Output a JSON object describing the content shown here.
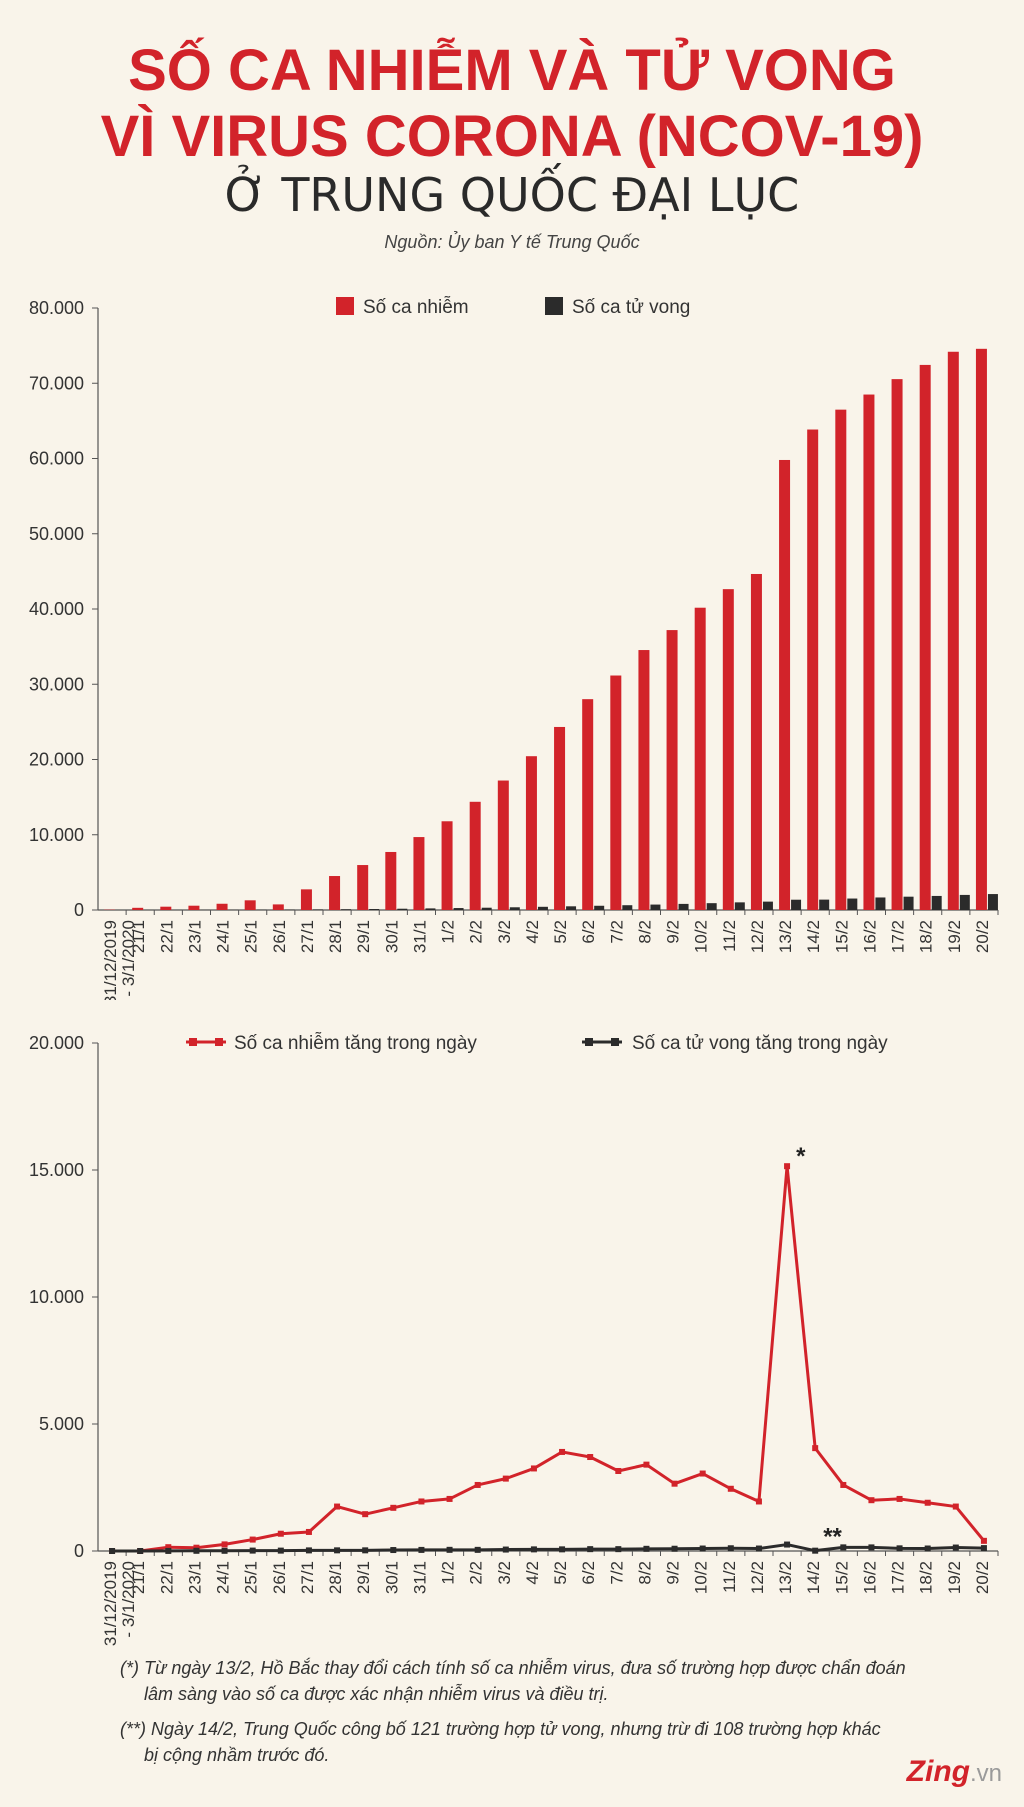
{
  "title": {
    "line1": "SỐ CA NHIỄM VÀ TỬ VONG",
    "line2": "VÌ VIRUS CORONA (NCOV-19)",
    "subtitle": "Ở TRUNG QUỐC ĐẠI LỤC",
    "source": "Nguồn: Ủy ban Y tế Trung Quốc"
  },
  "colors": {
    "red": "#d2232a",
    "dark": "#2b2b2b",
    "background": "#f9f4ea"
  },
  "chart_data": [
    {
      "type": "bar",
      "categories": [
        "31/12/2019\n- 3/1/2020",
        "21/1",
        "22/1",
        "23/1",
        "24/1",
        "25/1",
        "26/1",
        "27/1",
        "28/1",
        "29/1",
        "30/1",
        "31/1",
        "1/2",
        "2/2",
        "3/2",
        "4/2",
        "5/2",
        "6/2",
        "7/2",
        "8/2",
        "9/2",
        "10/2",
        "11/2",
        "12/2",
        "13/2",
        "14/2",
        "15/2",
        "16/2",
        "17/2",
        "18/2",
        "19/2",
        "20/2"
      ],
      "series": [
        {
          "name": "Số ca nhiễm",
          "values": [
            44,
            291,
            440,
            571,
            830,
            1287,
            744,
            2744,
            4515,
            5974,
            7711,
            9692,
            11791,
            14380,
            17205,
            20438,
            24324,
            28018,
            31161,
            34546,
            37198,
            40171,
            42638,
            44653,
            59804,
            63851,
            66492,
            68500,
            70548,
            72436,
            74185,
            74576
          ]
        },
        {
          "name": "Số ca tử vong",
          "values": [
            0,
            6,
            9,
            17,
            25,
            41,
            56,
            80,
            106,
            132,
            170,
            213,
            259,
            304,
            361,
            425,
            490,
            563,
            636,
            722,
            811,
            908,
            1016,
            1113,
            1367,
            1380,
            1523,
            1665,
            1770,
            1868,
            2004,
            2118
          ]
        }
      ],
      "ylim": [
        0,
        80000
      ],
      "yticks": [
        "0",
        "10.000",
        "20.000",
        "30.000",
        "40.000",
        "50.000",
        "60.000",
        "70.000",
        "80.000"
      ],
      "legend": "top-center"
    },
    {
      "type": "line",
      "categories": [
        "31/12/2019\n- 3/1/2020",
        "21/1",
        "22/1",
        "23/1",
        "24/1",
        "25/1",
        "26/1",
        "27/1",
        "28/1",
        "29/1",
        "30/1",
        "31/1",
        "1/2",
        "2/2",
        "3/2",
        "4/2",
        "5/2",
        "6/2",
        "7/2",
        "8/2",
        "9/2",
        "10/2",
        "11/2",
        "12/2",
        "13/2",
        "14/2",
        "15/2",
        "16/2",
        "17/2",
        "18/2",
        "19/2",
        "20/2"
      ],
      "series": [
        {
          "name": "Số ca nhiễm tăng trong ngày",
          "values": [
            0,
            0,
            150,
            130,
            260,
            450,
            680,
            750,
            1750,
            1450,
            1700,
            1950,
            2050,
            2600,
            2850,
            3250,
            3900,
            3700,
            3150,
            3400,
            2650,
            3050,
            2450,
            1950,
            15150,
            4050,
            2600,
            2000,
            2050,
            1900,
            1750,
            400
          ]
        },
        {
          "name": "Số ca tử vong tăng trong ngày",
          "values": [
            0,
            0,
            3,
            8,
            8,
            16,
            15,
            24,
            26,
            26,
            38,
            43,
            46,
            45,
            57,
            64,
            65,
            73,
            73,
            86,
            89,
            97,
            108,
            97,
            254,
            13,
            143,
            142,
            105,
            98,
            136,
            114
          ]
        }
      ],
      "ylim": [
        0,
        20000
      ],
      "yticks": [
        "0",
        "5.000",
        "10.000",
        "15.000",
        "20.000"
      ],
      "annotations": [
        {
          "text": "*",
          "at": "13/2"
        },
        {
          "text": "**",
          "at": "14/2"
        }
      ],
      "legend": "top-center"
    }
  ],
  "notes": {
    "note1_line1": "(*) Từ ngày 13/2, Hồ Bắc thay đổi cách tính số ca nhiễm virus, đưa số trường hợp được chẩn đoán",
    "note1_line2": "lâm sàng vào số ca được xác nhận nhiễm virus và điều trị.",
    "note2_line1": "(**) Ngày 14/2, Trung Quốc công bố 121 trường hợp tử vong, nhưng trừ đi 108 trường hợp khác",
    "note2_line2": "bị cộng nhầm trước đó."
  },
  "logo": {
    "brand": "Zing",
    "suffix": ".vn"
  }
}
